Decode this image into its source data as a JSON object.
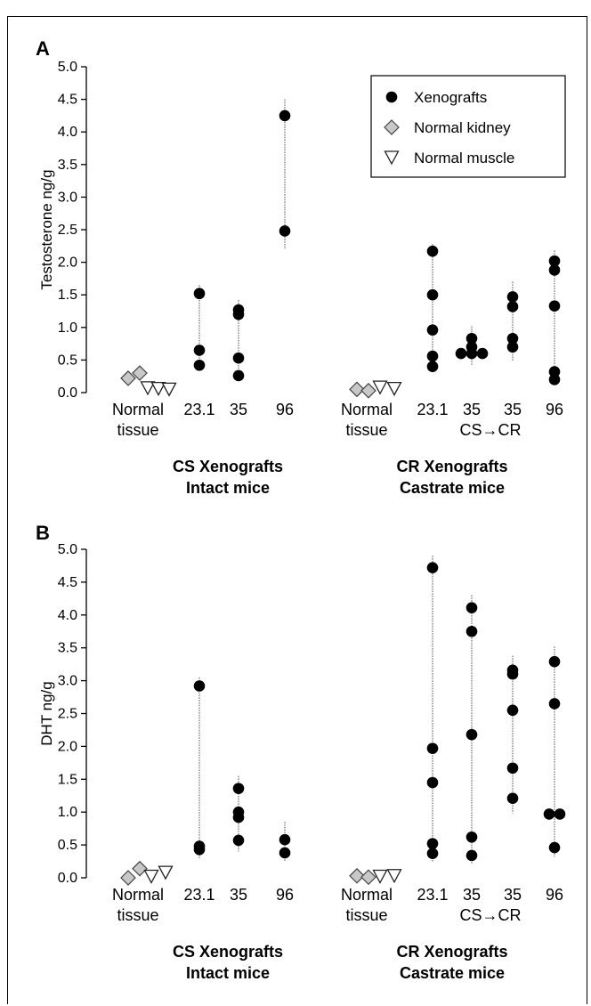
{
  "chart_data": [
    {
      "panel": "A",
      "type": "scatter",
      "ylabel": "Testosterone ng/g",
      "ylim": [
        0,
        5.0
      ],
      "yticks": [
        "0.0",
        "0.5",
        "1.0",
        "1.5",
        "2.0",
        "2.5",
        "3.0",
        "3.5",
        "4.0",
        "4.5",
        "5.0"
      ],
      "legend": {
        "placement": "top-right",
        "entries": [
          {
            "label": "Xenografts",
            "marker": "circle"
          },
          {
            "label": "Normal kidney",
            "marker": "diamond"
          },
          {
            "label": "Normal muscle",
            "marker": "triangle-down"
          }
        ]
      },
      "groups": [
        {
          "label_line1": "CS Xenografts",
          "label_line2": "Intact mice"
        },
        {
          "label_line1": "CR Xenografts",
          "label_line2": "Castrate mice"
        }
      ],
      "categories": [
        {
          "line1": "Normal",
          "line2": "tissue",
          "group": 0,
          "kidney": [
            0.22,
            0.3
          ],
          "muscle": [
            0.07,
            0.06,
            0.05
          ]
        },
        {
          "line1": "23.1",
          "line2": "",
          "group": 0,
          "xenografts": [
            1.52,
            0.65,
            0.42
          ],
          "range": [
            0.35,
            1.65
          ]
        },
        {
          "line1": "35",
          "line2": "",
          "group": 0,
          "xenografts": [
            1.27,
            1.2,
            0.53,
            0.26
          ],
          "range": [
            0.22,
            1.42
          ]
        },
        {
          "line1": "96",
          "line2": "",
          "group": 0,
          "xenografts": [
            4.25,
            2.48
          ],
          "range": [
            2.2,
            4.5
          ]
        },
        {
          "line1": "Normal",
          "line2": "tissue",
          "group": 1,
          "kidney": [
            0.05,
            0.03
          ],
          "muscle": [
            0.08,
            0.06
          ]
        },
        {
          "line1": "23.1",
          "line2": "",
          "group": 1,
          "xenografts": [
            2.17,
            1.5,
            0.96,
            0.56,
            0.4
          ],
          "range": [
            0.33,
            2.28
          ]
        },
        {
          "line1": "35",
          "line2": "",
          "group": 1,
          "xenografts": [
            0.83,
            0.7,
            0.6,
            0.6,
            0.6
          ],
          "range": [
            0.42,
            1.02
          ]
        },
        {
          "line1": "35",
          "line2": "CS→CR",
          "group": 1,
          "xenografts": [
            1.47,
            1.32,
            0.83,
            0.7
          ],
          "range": [
            0.48,
            1.7
          ]
        },
        {
          "line1": "96",
          "line2": "",
          "group": 1,
          "xenografts": [
            2.02,
            1.88,
            1.33,
            0.32,
            0.2
          ],
          "range": [
            0.12,
            2.18
          ]
        }
      ]
    },
    {
      "panel": "B",
      "type": "scatter",
      "ylabel": "DHT ng/g",
      "ylim": [
        0,
        5.0
      ],
      "yticks": [
        "0.0",
        "0.5",
        "1.0",
        "1.5",
        "2.0",
        "2.5",
        "3.0",
        "3.5",
        "4.0",
        "4.5",
        "5.0"
      ],
      "groups": [
        {
          "label_line1": "CS Xenografts",
          "label_line2": "Intact mice"
        },
        {
          "label_line1": "CR Xenografts",
          "label_line2": "Castrate mice"
        }
      ],
      "categories": [
        {
          "line1": "Normal",
          "line2": "tissue",
          "group": 0,
          "kidney": [
            0.0,
            0.14
          ],
          "muscle": [
            0.02,
            0.08
          ]
        },
        {
          "line1": "23.1",
          "line2": "",
          "group": 0,
          "xenografts": [
            2.92,
            0.48,
            0.43
          ],
          "range": [
            0.3,
            3.05
          ]
        },
        {
          "line1": "35",
          "line2": "",
          "group": 0,
          "xenografts": [
            1.36,
            1.0,
            0.92,
            0.57
          ],
          "range": [
            0.4,
            1.55
          ]
        },
        {
          "line1": "96",
          "line2": "",
          "group": 0,
          "xenografts": [
            0.58,
            0.38
          ],
          "range": [
            0.25,
            0.85
          ]
        },
        {
          "line1": "Normal",
          "line2": "tissue",
          "group": 1,
          "kidney": [
            0.03,
            0.01
          ],
          "muscle": [
            0.02,
            0.03
          ]
        },
        {
          "line1": "23.1",
          "line2": "",
          "group": 1,
          "xenografts": [
            4.72,
            1.97,
            1.45,
            0.52,
            0.37
          ],
          "range": [
            0.25,
            4.9
          ]
        },
        {
          "line1": "35",
          "line2": "",
          "group": 1,
          "xenografts": [
            4.11,
            3.75,
            2.18,
            0.62,
            0.34
          ],
          "range": [
            0.22,
            4.3
          ]
        },
        {
          "line1": "35",
          "line2": "CS→CR",
          "group": 1,
          "xenografts": [
            3.16,
            3.1,
            2.55,
            1.67,
            1.21
          ],
          "range": [
            0.98,
            3.38
          ]
        },
        {
          "line1": "96",
          "line2": "",
          "group": 1,
          "xenografts": [
            3.29,
            2.65,
            0.97,
            0.97,
            0.46
          ],
          "range": [
            0.32,
            3.52
          ]
        }
      ]
    }
  ]
}
